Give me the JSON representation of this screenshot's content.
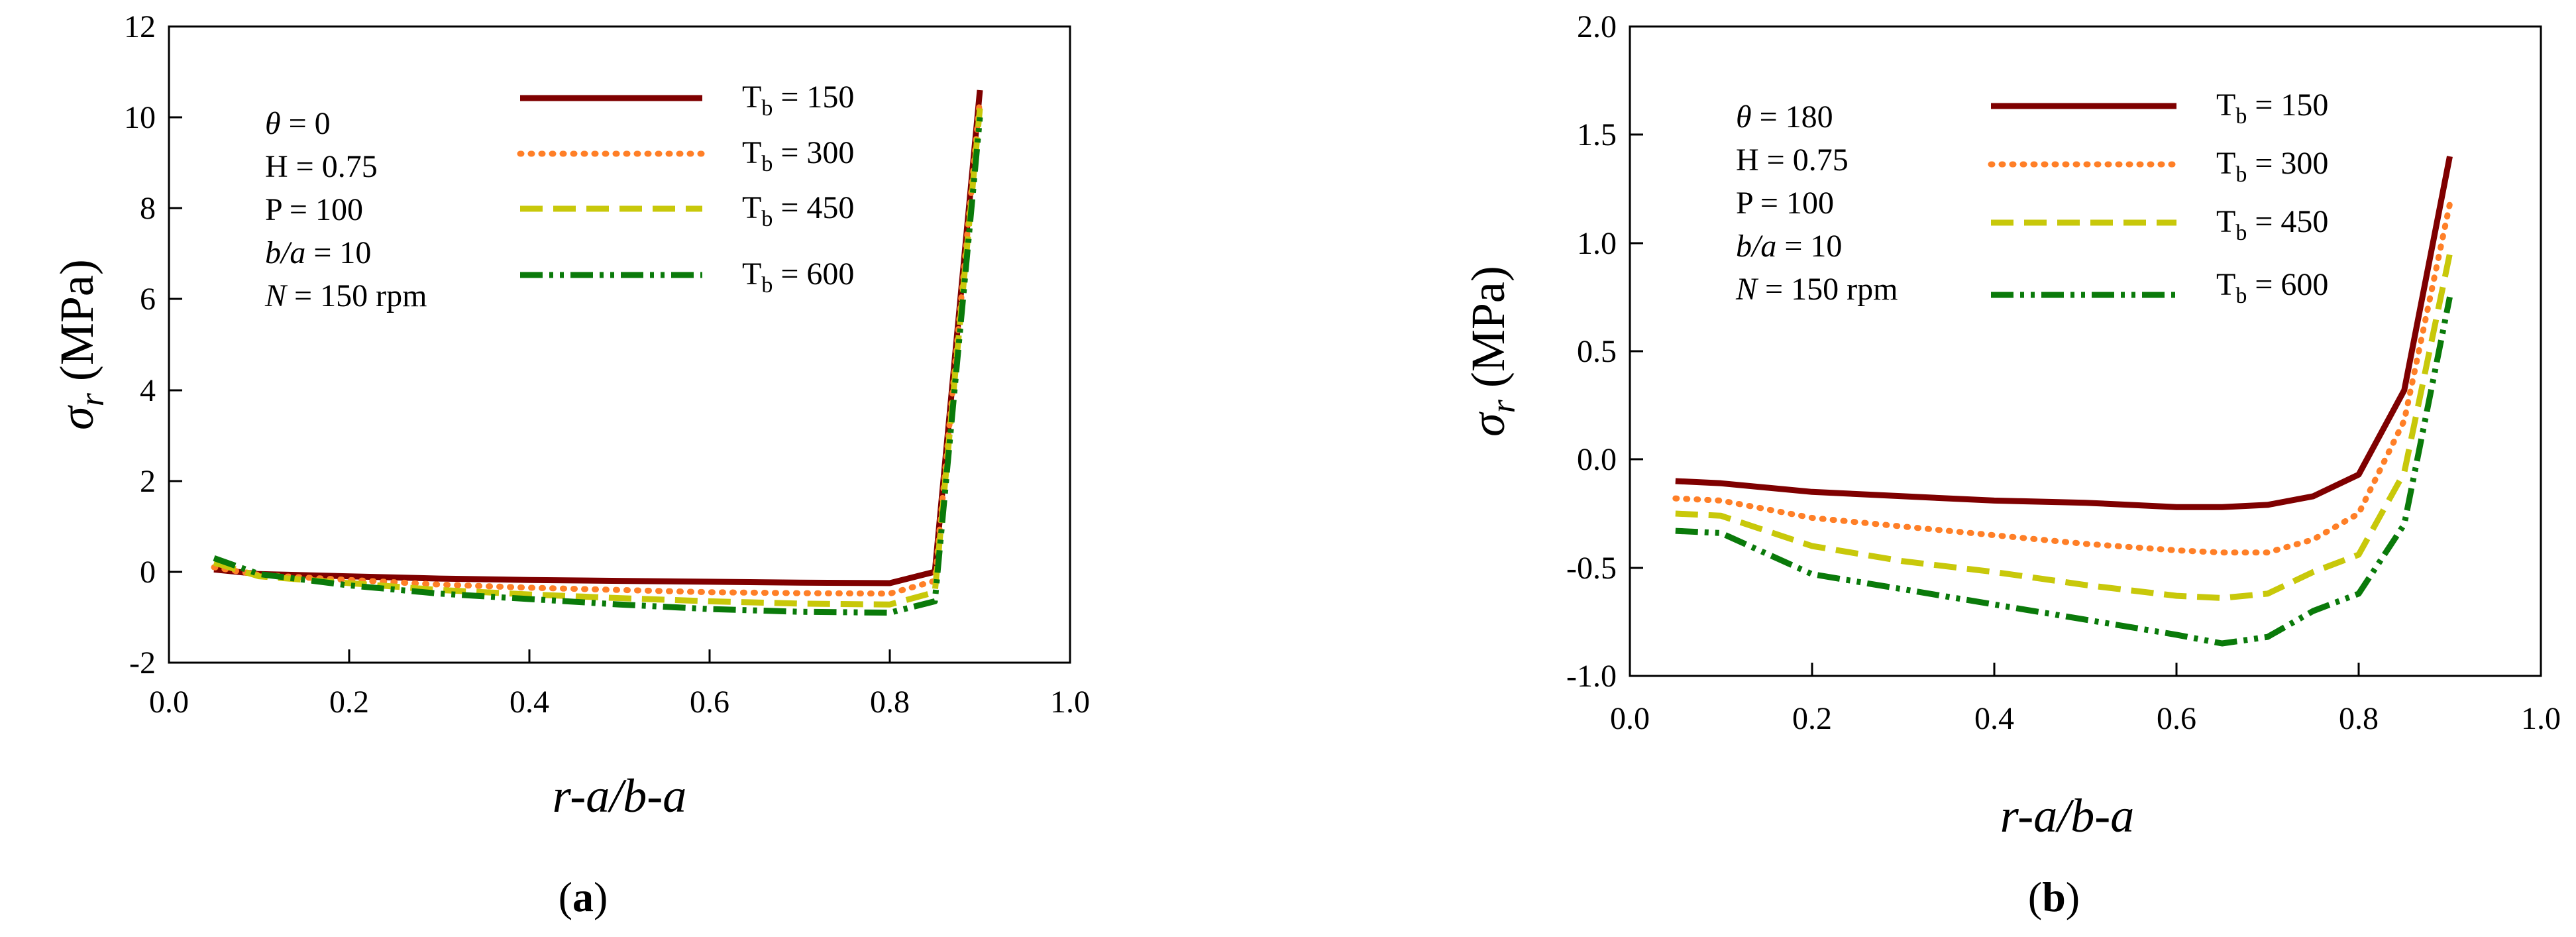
{
  "panels": [
    {
      "id": "a",
      "panel_label_prefix": "(",
      "panel_label_letter": "a",
      "panel_label_suffix": ")",
      "xlabel": "r-a/b-a",
      "ylabel_symbol": "σ",
      "ylabel_sub": "r",
      "ylabel_unit": " (MPa)",
      "x_ticks": [
        "0.0",
        "0.2",
        "0.4",
        "0.6",
        "0.8",
        "1.0"
      ],
      "y_ticks": [
        "-2",
        "0",
        "2",
        "4",
        "6",
        "8",
        "10",
        "12"
      ],
      "params": [
        {
          "italic": "θ",
          "rest": " = 0"
        },
        {
          "italic": "",
          "rest": "H = 0.75"
        },
        {
          "italic": "",
          "rest": "P = 100"
        },
        {
          "italic": "b/a",
          "rest": " = 10"
        },
        {
          "italic": "N",
          "rest": " = 150 rpm"
        }
      ],
      "legend": [
        {
          "prefix": "T",
          "sub": "b",
          "suffix": " = 150"
        },
        {
          "prefix": "T",
          "sub": "b",
          "suffix": " = 300"
        },
        {
          "prefix": "T",
          "sub": "b",
          "suffix": " = 450"
        },
        {
          "prefix": "T",
          "sub": "b",
          "suffix": " = 600"
        }
      ]
    },
    {
      "id": "b",
      "panel_label_prefix": "(",
      "panel_label_letter": "b",
      "panel_label_suffix": ")",
      "xlabel": "r-a/b-a",
      "ylabel_symbol": "σ",
      "ylabel_sub": "r",
      "ylabel_unit": " (MPa)",
      "x_ticks": [
        "0.0",
        "0.2",
        "0.4",
        "0.6",
        "0.8",
        "1.0"
      ],
      "y_ticks": [
        "-1.0",
        "-0.5",
        "0.0",
        "0.5",
        "1.0",
        "1.5",
        "2.0"
      ],
      "params": [
        {
          "italic": "θ",
          "rest": " = 180"
        },
        {
          "italic": "",
          "rest": "H = 0.75"
        },
        {
          "italic": "",
          "rest": "P = 100"
        },
        {
          "italic": "b/a",
          "rest": " = 10"
        },
        {
          "italic": "N",
          "rest": " = 150 rpm"
        }
      ],
      "legend": [
        {
          "prefix": "T",
          "sub": "b",
          "suffix": " = 150"
        },
        {
          "prefix": "T",
          "sub": "b",
          "suffix": " = 300"
        },
        {
          "prefix": "T",
          "sub": "b",
          "suffix": " = 450"
        },
        {
          "prefix": "T",
          "sub": "b",
          "suffix": " = 600"
        }
      ]
    }
  ],
  "series_styles": [
    {
      "name": "Tb = 150",
      "color": "#7f0000",
      "dash": "solid"
    },
    {
      "name": "Tb = 300",
      "color": "#ff7f27",
      "dash": "dotted"
    },
    {
      "name": "Tb = 450",
      "color": "#c8c80a",
      "dash": "dashed"
    },
    {
      "name": "Tb = 600",
      "color": "#0a7a0a",
      "dash": "dash-dot-dot"
    }
  ],
  "chart_data": [
    {
      "type": "line",
      "panel": "a",
      "title": "",
      "xlabel": "r-a/b-a",
      "ylabel": "σr (MPa)",
      "xlim": [
        0,
        1
      ],
      "ylim": [
        -2,
        12
      ],
      "x": [
        0.05,
        0.1,
        0.2,
        0.3,
        0.4,
        0.5,
        0.6,
        0.7,
        0.8,
        0.85,
        0.9
      ],
      "series": [
        {
          "name": "Tb = 150",
          "values": [
            0.05,
            -0.05,
            -0.1,
            -0.15,
            -0.18,
            -0.2,
            -0.22,
            -0.24,
            -0.25,
            0.0,
            10.6
          ]
        },
        {
          "name": "Tb = 300",
          "values": [
            0.1,
            -0.07,
            -0.18,
            -0.28,
            -0.35,
            -0.4,
            -0.45,
            -0.47,
            -0.48,
            -0.2,
            10.4
          ]
        },
        {
          "name": "Tb = 450",
          "values": [
            0.2,
            -0.1,
            -0.25,
            -0.4,
            -0.5,
            -0.58,
            -0.65,
            -0.7,
            -0.72,
            -0.45,
            10.2
          ]
        },
        {
          "name": "Tb = 600",
          "values": [
            0.3,
            -0.05,
            -0.3,
            -0.48,
            -0.6,
            -0.72,
            -0.82,
            -0.88,
            -0.9,
            -0.65,
            10.0
          ]
        }
      ],
      "annotations": [
        "θ = 0",
        "H = 0.75",
        "P = 100",
        "b/a = 10",
        "N = 150 rpm"
      ]
    },
    {
      "type": "line",
      "panel": "b",
      "title": "",
      "xlabel": "r-a/b-a",
      "ylabel": "σr (MPa)",
      "xlim": [
        0,
        1
      ],
      "ylim": [
        -1,
        2
      ],
      "x": [
        0.05,
        0.1,
        0.2,
        0.3,
        0.4,
        0.5,
        0.6,
        0.65,
        0.7,
        0.75,
        0.8,
        0.85,
        0.9
      ],
      "series": [
        {
          "name": "Tb = 150",
          "values": [
            -0.1,
            -0.11,
            -0.15,
            -0.17,
            -0.19,
            -0.2,
            -0.22,
            -0.22,
            -0.21,
            -0.17,
            -0.07,
            0.32,
            1.4
          ]
        },
        {
          "name": "Tb = 300",
          "values": [
            -0.18,
            -0.19,
            -0.27,
            -0.31,
            -0.35,
            -0.39,
            -0.42,
            -0.43,
            -0.43,
            -0.37,
            -0.25,
            0.18,
            1.18
          ]
        },
        {
          "name": "Tb = 450",
          "values": [
            -0.25,
            -0.26,
            -0.4,
            -0.47,
            -0.52,
            -0.58,
            -0.63,
            -0.64,
            -0.62,
            -0.52,
            -0.44,
            -0.06,
            0.95
          ]
        },
        {
          "name": "Tb = 600",
          "values": [
            -0.33,
            -0.34,
            -0.53,
            -0.6,
            -0.67,
            -0.74,
            -0.81,
            -0.85,
            -0.82,
            -0.7,
            -0.62,
            -0.3,
            0.75
          ]
        }
      ],
      "annotations": [
        "θ = 180",
        "H = 0.75",
        "P = 100",
        "b/a = 10",
        "N = 150 rpm"
      ]
    }
  ]
}
